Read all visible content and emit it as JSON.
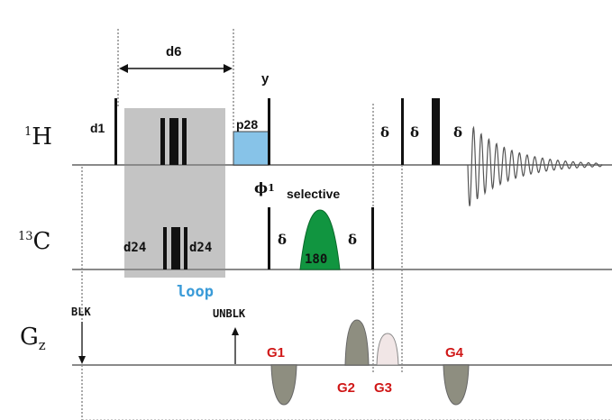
{
  "channels": {
    "proton": {
      "sup": "1",
      "label": "H"
    },
    "carbon": {
      "sup": "13",
      "label": "C"
    },
    "gradient": {
      "main": "G",
      "sub": "z"
    }
  },
  "labels": {
    "d6": "d6",
    "y": "y",
    "d1": "d1",
    "p28": "p28",
    "delta": "δ",
    "phi": "ϕ",
    "phi_sub": "1",
    "selective": "selective",
    "d24": "d24",
    "pulse180": "180",
    "loop": "loop",
    "blk": "BLK",
    "unblk": "UNBLK",
    "g1": "G1",
    "g2": "G2",
    "g3": "G3",
    "g4": "G4"
  },
  "colors": {
    "baseline": "#8a8a8a",
    "pulse": "#111111",
    "loop_box": "#c4c4c4",
    "p28_fill": "#87c3e8",
    "selective_fill": "#119540",
    "loop_text": "#3a9bd8",
    "gradient_label": "#d01818",
    "gradient_fill": "#8e8e80",
    "gradient_g3_fill": "#f1e6e6"
  }
}
